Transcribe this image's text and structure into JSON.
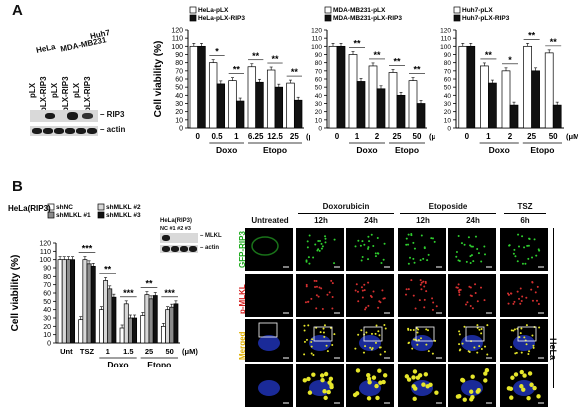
{
  "panels": {
    "A": "A",
    "B": "B"
  },
  "panelA": {
    "blot": {
      "cell_lines": [
        "HeLa",
        "MDA-MB231",
        "Huh7"
      ],
      "lanes": [
        "pLX",
        "pLX-RIP3",
        "pLX",
        "pLX-RIP3",
        "pLX",
        "pLX-RIP3"
      ],
      "rows": [
        "RIP3",
        "actin"
      ]
    }
  },
  "panelB": {
    "blot": {
      "title": "HeLa(RIP3)",
      "lanes": [
        "NC",
        "#1",
        "#2",
        "#3"
      ],
      "rows": [
        "MLKL",
        "actin"
      ]
    },
    "micro": {
      "groups": [
        {
          "label": "Untreated",
          "times": []
        },
        {
          "label": "Doxorubicin",
          "times": [
            "12h",
            "24h"
          ]
        },
        {
          "label": "Etoposide",
          "times": [
            "12h",
            "24h"
          ]
        },
        {
          "label": "TSZ",
          "times": [
            "6h"
          ]
        }
      ],
      "rows": [
        "GFP-RIP3",
        "p-MLKL",
        "Merged",
        ""
      ],
      "side_label": "HeLa"
    }
  },
  "chart_data": [
    {
      "type": "bar",
      "ylabel": "Cell viability (%)",
      "ylim": [
        0,
        120
      ],
      "yticks": [
        0,
        10,
        20,
        30,
        40,
        50,
        60,
        70,
        80,
        90,
        100,
        110,
        120
      ],
      "categories": [
        "0",
        "0.5",
        "1",
        "6.25",
        "12.5",
        "25"
      ],
      "unit": "(μM)",
      "groups": [
        {
          "label": "Doxo",
          "from": 1,
          "to": 2
        },
        {
          "label": "Etopo",
          "from": 3,
          "to": 5
        }
      ],
      "significance": [
        "",
        "*",
        "**",
        "**",
        "**",
        "**"
      ],
      "series": [
        {
          "name": "HeLa-pLX",
          "color": "#ffffff",
          "values": [
            100,
            80,
            58,
            75,
            71,
            55
          ]
        },
        {
          "name": "HeLa-pLX-RIP3",
          "color": "#111111",
          "values": [
            100,
            54,
            33,
            56,
            50,
            34
          ]
        }
      ]
    },
    {
      "type": "bar",
      "ylim": [
        0,
        120
      ],
      "yticks": [
        0,
        10,
        20,
        30,
        40,
        50,
        60,
        70,
        80,
        90,
        100,
        110,
        120
      ],
      "categories": [
        "0",
        "1",
        "2",
        "25",
        "50"
      ],
      "unit": "(μM)",
      "groups": [
        {
          "label": "Doxo",
          "from": 1,
          "to": 2
        },
        {
          "label": "Etopo",
          "from": 3,
          "to": 4
        }
      ],
      "significance": [
        "",
        "**",
        "**",
        "**",
        "**"
      ],
      "series": [
        {
          "name": "MDA-MB231-pLX",
          "color": "#ffffff",
          "values": [
            100,
            90,
            76,
            68,
            58
          ]
        },
        {
          "name": "MDA-MB231-pLX-RIP3",
          "color": "#111111",
          "values": [
            100,
            57,
            48,
            40,
            30
          ]
        }
      ]
    },
    {
      "type": "bar",
      "ylim": [
        0,
        120
      ],
      "yticks": [
        0,
        10,
        20,
        30,
        40,
        50,
        60,
        70,
        80,
        90,
        100,
        110,
        120
      ],
      "categories": [
        "0",
        "1",
        "2",
        "25",
        "50"
      ],
      "unit": "(μM)",
      "groups": [
        {
          "label": "Doxo",
          "from": 1,
          "to": 2
        },
        {
          "label": "Etopo",
          "from": 3,
          "to": 4
        }
      ],
      "significance": [
        "",
        "**",
        "*",
        "**",
        "**"
      ],
      "series": [
        {
          "name": "Huh7-pLX",
          "color": "#ffffff",
          "values": [
            100,
            76,
            70,
            100,
            92
          ]
        },
        {
          "name": "Huh7-pLX-RIP3",
          "color": "#111111",
          "values": [
            100,
            55,
            28,
            70,
            28
          ]
        }
      ]
    },
    {
      "type": "bar",
      "title": "HeLa(RIP3)",
      "ylabel": "Cell viability (%)",
      "ylim": [
        0,
        120
      ],
      "yticks": [
        0,
        10,
        20,
        30,
        40,
        50,
        60,
        70,
        80,
        90,
        100,
        110,
        120
      ],
      "categories": [
        "Unt",
        "TSZ",
        "1",
        "1.5",
        "25",
        "50"
      ],
      "unit": "(μM)",
      "groups": [
        {
          "label": "Doxo",
          "from": 2,
          "to": 3
        },
        {
          "label": "Etopo",
          "from": 4,
          "to": 5
        }
      ],
      "significance": [
        "",
        "***",
        "**",
        "***",
        "**",
        "***"
      ],
      "series": [
        {
          "name": "shNC",
          "color": "#ffffff",
          "values": [
            100,
            28,
            40,
            18,
            33,
            20
          ]
        },
        {
          "name": "shMLKL #2",
          "color": "#d8d8d8",
          "values": [
            100,
            100,
            75,
            47,
            58,
            40
          ]
        },
        {
          "name": "shMLKL #1",
          "color": "#8c8c8c",
          "values": [
            100,
            95,
            65,
            30,
            53,
            43
          ]
        },
        {
          "name": "shMLKL #3",
          "color": "#111111",
          "values": [
            100,
            92,
            55,
            30,
            57,
            47
          ]
        }
      ]
    }
  ]
}
